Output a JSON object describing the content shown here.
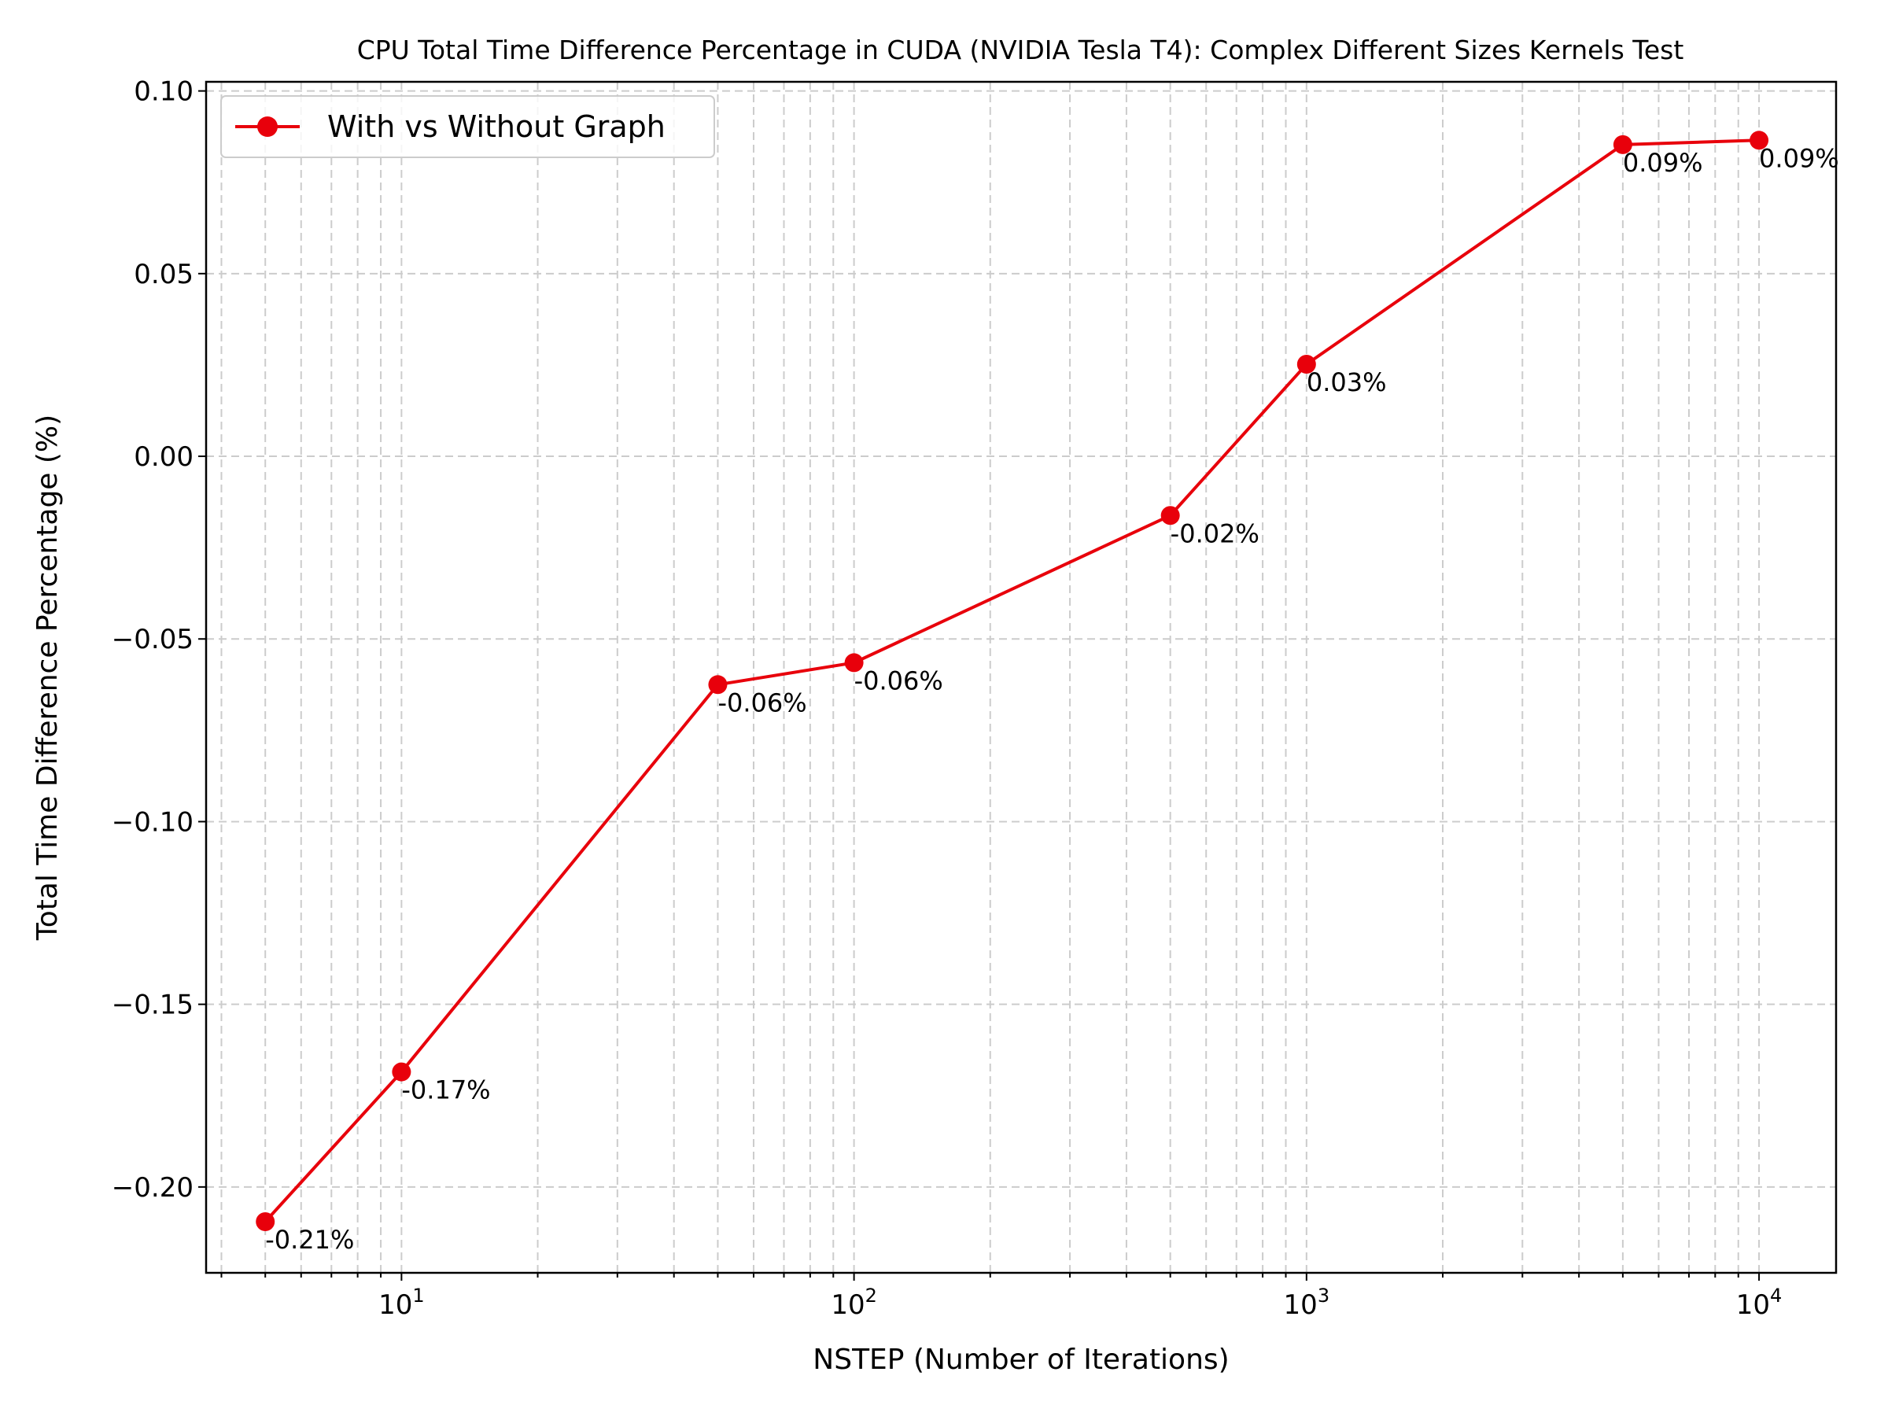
{
  "chart_data": {
    "type": "line",
    "title": "CPU Total Time Difference Percentage in CUDA (NVIDIA Tesla T4): Complex Different Sizes Kernels Test",
    "xlabel": "NSTEP (Number of Iterations)",
    "ylabel": "Total Time Difference Percentage (%)",
    "xscale": "log",
    "xlim": [
      3.7,
      14800
    ],
    "ylim": [
      -0.2235,
      0.1025
    ],
    "grid": true,
    "legend_position": "top-left",
    "x_major_ticks": [
      {
        "value": 10,
        "base": "10",
        "exp": "1"
      },
      {
        "value": 100,
        "base": "10",
        "exp": "2"
      },
      {
        "value": 1000,
        "base": "10",
        "exp": "3"
      },
      {
        "value": 10000,
        "base": "10",
        "exp": "4"
      }
    ],
    "y_ticks": [
      {
        "value": 0.1,
        "label": "0.10"
      },
      {
        "value": 0.05,
        "label": "0.05"
      },
      {
        "value": 0.0,
        "label": "0.00"
      },
      {
        "value": -0.05,
        "label": "−0.05"
      },
      {
        "value": -0.1,
        "label": "−0.10"
      },
      {
        "value": -0.15,
        "label": "−0.15"
      },
      {
        "value": -0.2,
        "label": "−0.20"
      }
    ],
    "series": [
      {
        "name": "With vs Without Graph",
        "color": "#e8000b",
        "marker": "circle",
        "x": [
          5,
          10,
          50,
          100,
          500,
          1000,
          5000,
          10000
        ],
        "y": [
          -0.2095,
          -0.1685,
          -0.0625,
          -0.0565,
          -0.0162,
          0.0252,
          0.0853,
          0.0865
        ],
        "labels": [
          "-0.21%",
          "-0.17%",
          "-0.06%",
          "-0.06%",
          "-0.02%",
          "0.03%",
          "0.09%",
          "0.09%"
        ]
      }
    ]
  }
}
